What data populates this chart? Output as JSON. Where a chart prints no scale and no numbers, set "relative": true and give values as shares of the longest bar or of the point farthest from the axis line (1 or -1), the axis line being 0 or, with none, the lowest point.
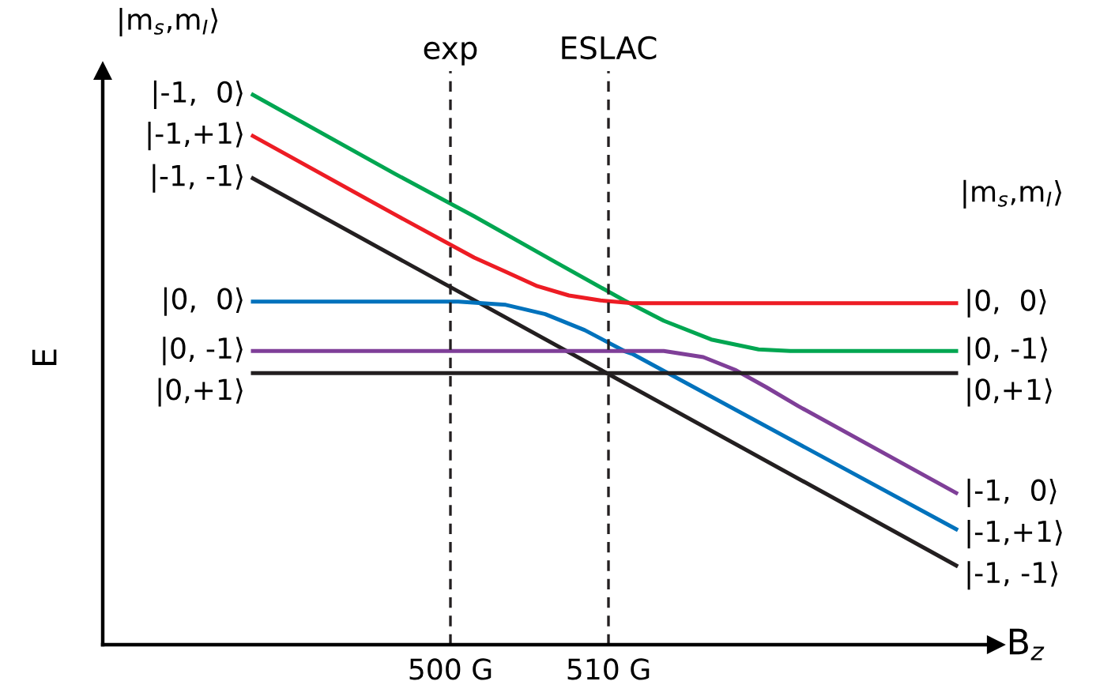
{
  "chart_data": {
    "type": "line",
    "relative": true,
    "xlabel": "B$_{z}$",
    "ylabel": "E",
    "xlim": [
      478,
      534.5
    ],
    "xticks": [
      {
        "value": 500,
        "label": "500 G"
      },
      {
        "value": 510,
        "label": "510 G"
      }
    ],
    "grid": false,
    "series": [
      {
        "color": "#00a651",
        "x": [
          487.5,
          496.5,
          501.5,
          506.5,
          511,
          513.5,
          516.5,
          519.5,
          521.5,
          532
        ],
        "values": [
          1.0,
          0.856,
          0.779,
          0.698,
          0.626,
          0.589,
          0.555,
          0.537,
          0.534,
          0.534
        ]
      },
      {
        "color": "#ed1c24",
        "x": [
          487.5,
          496.5,
          501.5,
          503.5,
          505.5,
          507.5,
          509.5,
          511.5,
          532
        ],
        "values": [
          0.925,
          0.782,
          0.704,
          0.678,
          0.652,
          0.635,
          0.626,
          0.621,
          0.621
        ]
      },
      {
        "color": "#231f20",
        "x": [
          487.5,
          532
        ],
        "values": [
          0.848,
          0.144
        ]
      },
      {
        "color": "#0072bc",
        "x": [
          487.5,
          500.5,
          503.5,
          506,
          508.5,
          511,
          511.5,
          532
        ],
        "values": [
          0.624,
          0.624,
          0.618,
          0.601,
          0.572,
          0.534,
          0.529,
          0.21
        ]
      },
      {
        "color": "#7f3f98",
        "x": [
          487.5,
          513.5,
          516,
          518,
          520,
          522,
          532
        ],
        "values": [
          0.534,
          0.534,
          0.523,
          0.5,
          0.468,
          0.434,
          0.276
        ]
      },
      {
        "color": "#231f20",
        "x": [
          487.5,
          532
        ],
        "values": [
          0.494,
          0.494
        ]
      }
    ],
    "ref_lines": [
      {
        "axis": "x",
        "value": 500,
        "label": "exp",
        "color": "#231f20",
        "line_style": "dashed"
      },
      {
        "axis": "x",
        "value": 510,
        "label": "ESLAC",
        "color": "#231f20",
        "line_style": "dashed"
      }
    ],
    "annotations": [
      "|m$_{s}$,m$_{I}$⟩",
      "|m$_{s}$,m$_{I}$⟩",
      "|-1,  0⟩",
      "|-1,+1⟩",
      "|-1, -1⟩",
      "|0,  0⟩",
      "|0, -1⟩",
      "|0,+1⟩",
      "|0,  0⟩",
      "|0, -1⟩",
      "|0,+1⟩",
      "|-1,  0⟩",
      "|-1,+1⟩",
      "|-1, -1⟩"
    ]
  }
}
